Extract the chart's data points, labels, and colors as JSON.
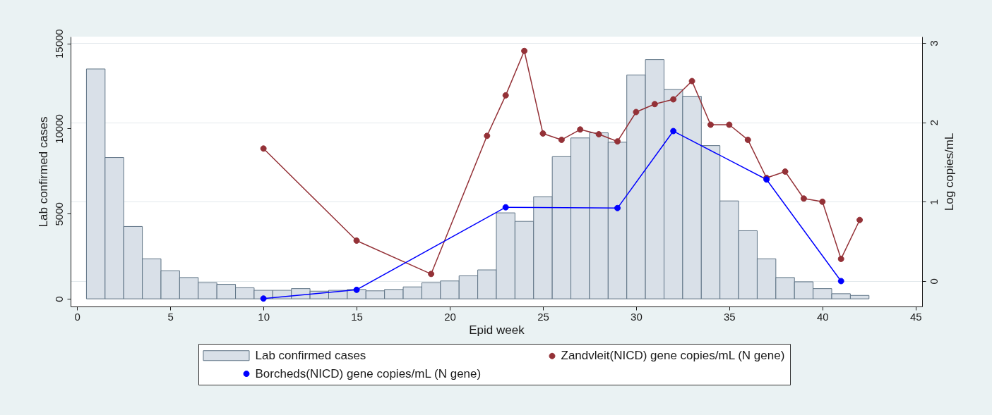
{
  "chart_data": {
    "type": "bar",
    "xlabel": "Epid week",
    "ylabel": "Lab confirmed cases",
    "y2label": "Log copies/mL",
    "xlim": [
      -0.35,
      45.35
    ],
    "xticks": [
      0,
      5,
      10,
      15,
      20,
      25,
      30,
      35,
      40,
      45
    ],
    "ylim": [
      -450,
      15400
    ],
    "yticks": [
      0,
      5000,
      10000,
      15000
    ],
    "y2lim": [
      -0.32,
      3.08
    ],
    "y2ticks": [
      0,
      1,
      2,
      3
    ],
    "grid": "y2",
    "legend": "bottom",
    "marker": "circle",
    "line_style": "solid",
    "series": [
      {
        "name": "Lab confirmed cases",
        "color": "#d9e0e8",
        "x": [
          1,
          2,
          3,
          4,
          5,
          6,
          7,
          8,
          9,
          10,
          11,
          12,
          13,
          14,
          15,
          16,
          17,
          18,
          19,
          20,
          21,
          22,
          23,
          24,
          25,
          26,
          27,
          28,
          29,
          30,
          31,
          32,
          33,
          34,
          35,
          36,
          37,
          38,
          39,
          40,
          41,
          42
        ],
        "values": [
          13500,
          8300,
          4250,
          2350,
          1650,
          1250,
          950,
          850,
          650,
          500,
          500,
          600,
          450,
          500,
          550,
          470,
          550,
          700,
          950,
          1050,
          1350,
          1700,
          5050,
          4550,
          6000,
          8350,
          9450,
          9750,
          9200,
          13150,
          14050,
          12300,
          11900,
          9000,
          5750,
          4000,
          2350,
          1250,
          1000,
          600,
          300,
          200
        ]
      },
      {
        "name": "Zandvleit(NICD) gene copies/mL (N gene)",
        "type": "line",
        "axis": "y2",
        "color": "#943137",
        "x": [
          10,
          15,
          19,
          22,
          23,
          24,
          25,
          26,
          27,
          28,
          29,
          30,
          31,
          32,
          33,
          34,
          35,
          36,
          37,
          38,
          39,
          40,
          41,
          42
        ],
        "values": [
          1.67,
          0.51,
          0.09,
          1.83,
          2.34,
          2.9,
          1.86,
          1.78,
          1.91,
          1.85,
          1.76,
          2.13,
          2.23,
          2.29,
          2.52,
          1.97,
          1.97,
          1.78,
          1.3,
          1.38,
          1.04,
          1.0,
          0.28,
          0.77
        ]
      },
      {
        "name": "Borcheds(NICD) gene copies/mL (N gene)",
        "type": "line",
        "axis": "y2",
        "color": "#0000ff",
        "x": [
          10,
          15,
          23,
          29,
          32,
          37,
          41
        ],
        "values": [
          -0.22,
          -0.11,
          0.93,
          0.92,
          1.89,
          1.28,
          0.0
        ]
      }
    ]
  }
}
